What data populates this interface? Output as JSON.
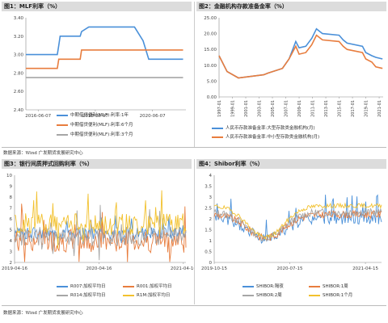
{
  "panels": [
    {
      "title": "图1：MLF利率（%）"
    },
    {
      "title": "图2：金融机构存款准备金率（%）"
    },
    {
      "title": "图3：银行间质押式回购利率（%）"
    },
    {
      "title": "图4：Shibor利率（%）"
    }
  ],
  "sources": [
    "数据来源：Wind 广发期货发展研究中心",
    "数据来源：Wind 广发期货发展研究中心"
  ],
  "chart_data": [
    {
      "type": "line",
      "title": "图1：MLF利率（%）",
      "ylim": [
        2.4,
        3.4
      ],
      "yticks": [
        "2.40",
        "2.60",
        "2.80",
        "3.00",
        "3.20",
        "3.40"
      ],
      "xticks": [
        "2016-06-07",
        "2018-06-07",
        "2020-06-07"
      ],
      "xlim": [
        2016.0,
        2021.6
      ],
      "series": [
        {
          "name": "中期借贷便利(MLF):利率:1年",
          "color": "#4a90d9",
          "points": [
            [
              2016.0,
              3.0
            ],
            [
              2017.1,
              3.0
            ],
            [
              2017.15,
              3.1
            ],
            [
              2017.2,
              3.2
            ],
            [
              2017.9,
              3.2
            ],
            [
              2017.95,
              3.25
            ],
            [
              2018.2,
              3.3
            ],
            [
              2019.8,
              3.3
            ],
            [
              2019.9,
              3.25
            ],
            [
              2020.1,
              3.15
            ],
            [
              2020.3,
              2.95
            ],
            [
              2021.5,
              2.95
            ]
          ]
        },
        {
          "name": "中期借贷便利(MLF):利率:6个月",
          "color": "#e87d3e",
          "points": [
            [
              2016.0,
              2.85
            ],
            [
              2017.1,
              2.85
            ],
            [
              2017.15,
              2.95
            ],
            [
              2017.9,
              2.95
            ],
            [
              2017.95,
              3.05
            ],
            [
              2021.5,
              3.05
            ]
          ]
        },
        {
          "name": "中期借贷便利(MLF):利率:3个月",
          "color": "#a6a6a6",
          "points": [
            [
              2016.0,
              2.75
            ],
            [
              2021.5,
              2.75
            ]
          ]
        }
      ]
    },
    {
      "type": "line",
      "title": "图2：金融机构存款准备金率（%）",
      "ylim": [
        0,
        25
      ],
      "yticks": [
        "0.00",
        "5.00",
        "10.00",
        "15.00",
        "20.00",
        "25.00"
      ],
      "xticks": [
        "1997-01",
        "1999-01",
        "2001-01",
        "2003-01",
        "2005-01",
        "2007-01",
        "2009-01",
        "2011-01",
        "2013-01",
        "2015-01",
        "2017-01",
        "2019-01",
        "2021-01"
      ],
      "xlim": [
        1997.0,
        2021.6
      ],
      "series": [
        {
          "name": "人民币存款准备金率:大型存款类金融机构(月)",
          "color": "#4a90d9",
          "points": [
            [
              1997.0,
              13
            ],
            [
              1998.2,
              8
            ],
            [
              1999.9,
              6
            ],
            [
              2003.7,
              7
            ],
            [
              2004.3,
              7.5
            ],
            [
              2006.5,
              9
            ],
            [
              2007.5,
              12
            ],
            [
              2008.5,
              17.5
            ],
            [
              2009.0,
              15.5
            ],
            [
              2010.0,
              16
            ],
            [
              2010.9,
              18.5
            ],
            [
              2011.6,
              21.5
            ],
            [
              2012.5,
              20
            ],
            [
              2015.0,
              19.5
            ],
            [
              2015.6,
              18
            ],
            [
              2016.2,
              17
            ],
            [
              2018.5,
              16
            ],
            [
              2019.0,
              14
            ],
            [
              2019.9,
              13
            ],
            [
              2020.5,
              12.5
            ],
            [
              2021.5,
              12
            ]
          ]
        },
        {
          "name": "人民币存款准备金率:中小型存款类金融机构(月)",
          "color": "#e87d3e",
          "points": [
            [
              1997.0,
              13
            ],
            [
              1998.2,
              8
            ],
            [
              1999.9,
              6
            ],
            [
              2003.7,
              7
            ],
            [
              2004.3,
              7.5
            ],
            [
              2006.5,
              9
            ],
            [
              2007.5,
              12
            ],
            [
              2008.5,
              16
            ],
            [
              2009.0,
              13.5
            ],
            [
              2010.0,
              14
            ],
            [
              2010.9,
              16.5
            ],
            [
              2011.6,
              19.5
            ],
            [
              2012.5,
              18
            ],
            [
              2015.0,
              17.5
            ],
            [
              2015.6,
              16
            ],
            [
              2016.2,
              15
            ],
            [
              2018.5,
              14
            ],
            [
              2019.0,
              12
            ],
            [
              2019.9,
              11
            ],
            [
              2020.5,
              9.5
            ],
            [
              2021.5,
              9
            ]
          ]
        }
      ]
    },
    {
      "type": "line",
      "title": "图3：银行间质押式回购利率（%）",
      "ylim": [
        2,
        10
      ],
      "yticks": [
        "2",
        "3",
        "4",
        "5",
        "6",
        "7",
        "8",
        "9",
        "10"
      ],
      "xticks": [
        "2019-04-16",
        "2020-04-16",
        "2021-04-16"
      ],
      "xlim": [
        2019.29,
        2021.32
      ],
      "series": [
        {
          "name": "R007:加权平均日",
          "color": "#4a90d9",
          "base": 4.7,
          "amp": 0.55,
          "seed": 3
        },
        {
          "name": "R001:加权平均日",
          "color": "#e87d3e",
          "base": 4.0,
          "amp": 1.1,
          "seed": 7
        },
        {
          "name": "R014:加权平均日",
          "color": "#a6a6a6",
          "base": 4.4,
          "amp": 0.9,
          "seed": 11
        },
        {
          "name": "R1M:加权平均日",
          "color": "#f2c12e",
          "base": 5.5,
          "amp": 1.0,
          "seed": 17
        }
      ]
    },
    {
      "type": "line",
      "title": "图4：Shibor利率（%）",
      "ylim": [
        0,
        4
      ],
      "yticks": [
        "0",
        "0.5",
        "1",
        "1.5",
        "2",
        "2.5",
        "3",
        "3.5",
        "4"
      ],
      "xticks": [
        "2019-10-15",
        "2020-07-15",
        "2021-04-15"
      ],
      "xlim": [
        2019.79,
        2021.45
      ],
      "series": [
        {
          "name": "SHIBOR:隔夜",
          "color": "#4a90d9",
          "base": 2.0,
          "amp": 0.5,
          "seed": 5
        },
        {
          "name": "SHIBOR:1周",
          "color": "#e87d3e",
          "base": 2.2,
          "amp": 0.35,
          "seed": 9
        },
        {
          "name": "SHIBOR:2周",
          "color": "#a6a6a6",
          "base": 2.3,
          "amp": 0.35,
          "seed": 13
        },
        {
          "name": "SHIBOR:1个月",
          "color": "#f2c12e",
          "base": 2.6,
          "amp": 0.2,
          "seed": 19
        }
      ]
    }
  ]
}
